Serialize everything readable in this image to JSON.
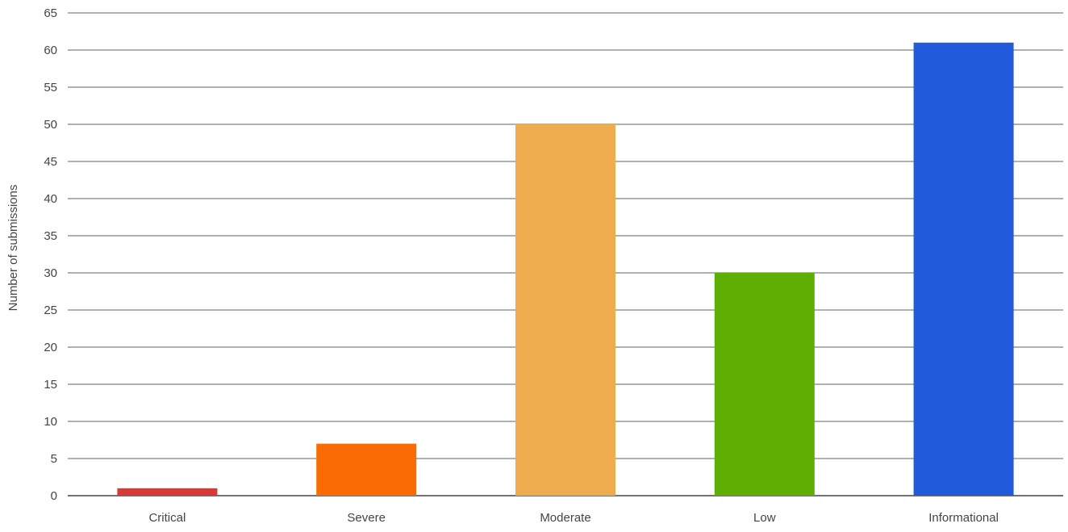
{
  "chart_data": {
    "type": "bar",
    "title": "",
    "xlabel": "",
    "ylabel": "Number of submissions",
    "ylim": [
      0,
      65
    ],
    "y_ticks": [
      0,
      5,
      10,
      15,
      20,
      25,
      30,
      35,
      40,
      45,
      50,
      55,
      60,
      65
    ],
    "categories": [
      "Critical",
      "Severe",
      "Moderate",
      "Low",
      "Informational"
    ],
    "values": [
      1,
      7,
      50,
      30,
      61
    ],
    "colors": [
      "#d93a35",
      "#f96b04",
      "#eeac4e",
      "#5eae03",
      "#215bdc"
    ],
    "grid": true,
    "legend": "none"
  }
}
